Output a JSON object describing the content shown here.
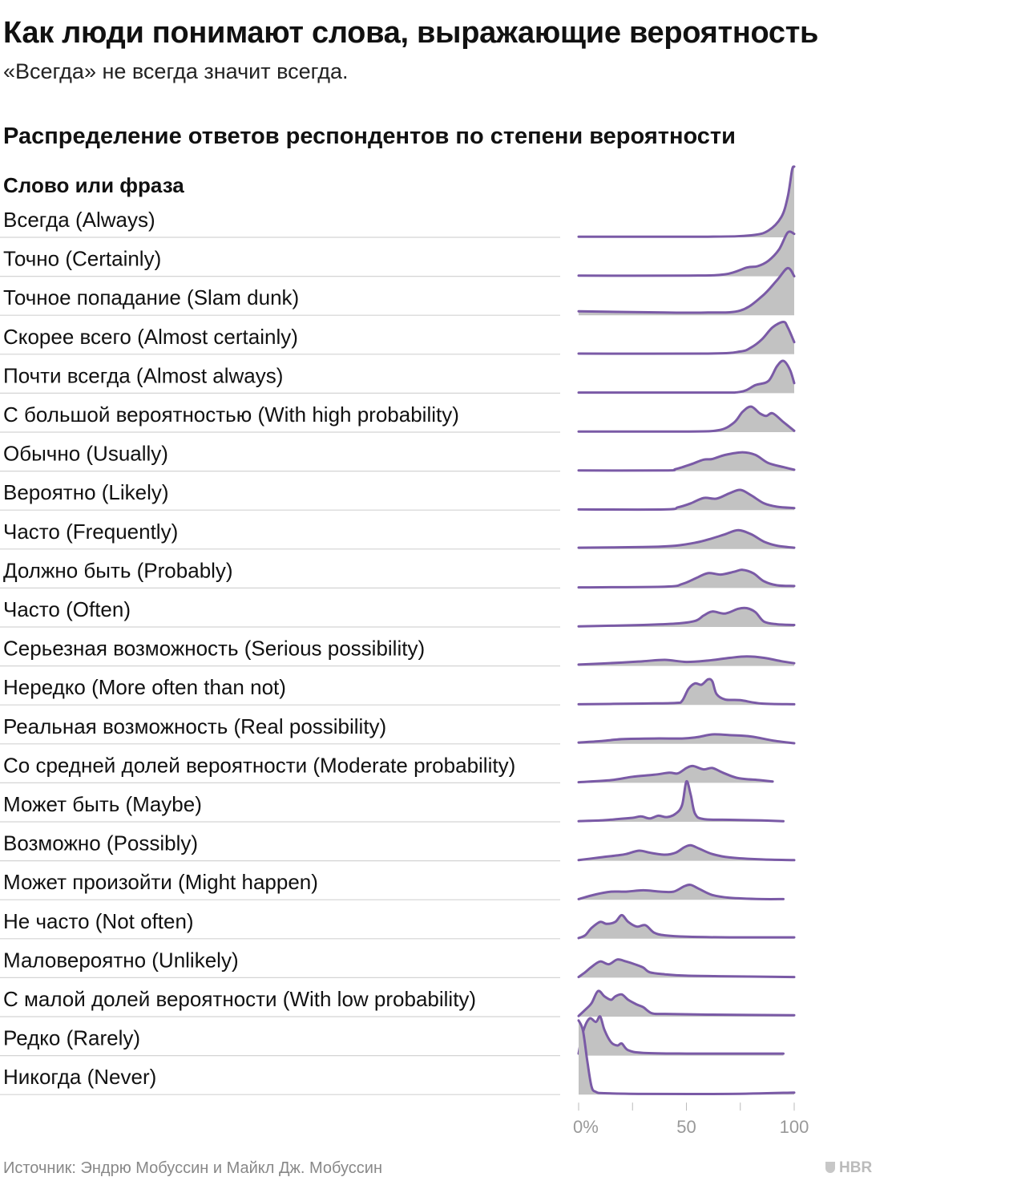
{
  "title": "Как люди понимают слова, выражающие вероятность",
  "subtitle": "«Всегда» не всегда значит всегда.",
  "section_title": "Распределение ответов респондентов по степени вероятности",
  "source": "Источник: Эндрю Мобуссин и Майкл Дж. Мобуссин",
  "brand": "HBR",
  "colors": {
    "line": "#7a5aa6",
    "fill": "#c2c2c2",
    "divider": "#d4d4d4",
    "tick": "#999999"
  },
  "chart_data": {
    "type": "area",
    "column_header": "Слово или фраза",
    "x_ticks": [
      "0%",
      "50",
      "100"
    ],
    "xlim": [
      0,
      100
    ],
    "rows": [
      {
        "label": "Всегда (Always)",
        "density": [
          [
            0,
            1
          ],
          [
            60,
            1
          ],
          [
            80,
            3
          ],
          [
            88,
            10
          ],
          [
            94,
            30
          ],
          [
            97,
            60
          ],
          [
            99,
            100
          ],
          [
            100,
            105
          ]
        ]
      },
      {
        "label": "Точно (Certainly)",
        "density": [
          [
            0,
            1
          ],
          [
            50,
            1
          ],
          [
            68,
            3
          ],
          [
            78,
            13
          ],
          [
            83,
            15
          ],
          [
            88,
            23
          ],
          [
            93,
            40
          ],
          [
            97,
            65
          ],
          [
            100,
            63
          ]
        ]
      },
      {
        "label": "Точное попадание (Slam dunk)",
        "density": [
          [
            0,
            6
          ],
          [
            40,
            4
          ],
          [
            60,
            4
          ],
          [
            75,
            7
          ],
          [
            85,
            28
          ],
          [
            92,
            52
          ],
          [
            97,
            70
          ],
          [
            100,
            58
          ]
        ]
      },
      {
        "label": "Скорее всего (Almost certainly)",
        "density": [
          [
            0,
            1
          ],
          [
            60,
            1
          ],
          [
            75,
            4
          ],
          [
            80,
            10
          ],
          [
            85,
            22
          ],
          [
            90,
            40
          ],
          [
            95,
            48
          ],
          [
            97,
            40
          ],
          [
            100,
            18
          ]
        ]
      },
      {
        "label": "Почти всегда (Almost always)",
        "density": [
          [
            0,
            1
          ],
          [
            60,
            1
          ],
          [
            75,
            2
          ],
          [
            82,
            12
          ],
          [
            88,
            18
          ],
          [
            92,
            40
          ],
          [
            95,
            48
          ],
          [
            98,
            35
          ],
          [
            100,
            15
          ]
        ]
      },
      {
        "label": "С большой вероятностью (With high probability)",
        "density": [
          [
            0,
            1
          ],
          [
            50,
            1
          ],
          [
            65,
            3
          ],
          [
            72,
            14
          ],
          [
            76,
            30
          ],
          [
            80,
            38
          ],
          [
            84,
            28
          ],
          [
            87,
            24
          ],
          [
            90,
            28
          ],
          [
            95,
            15
          ],
          [
            100,
            2
          ]
        ]
      },
      {
        "label": "Обычно (Usually)",
        "density": [
          [
            0,
            1
          ],
          [
            40,
            1
          ],
          [
            45,
            3
          ],
          [
            52,
            10
          ],
          [
            58,
            17
          ],
          [
            62,
            18
          ],
          [
            68,
            24
          ],
          [
            76,
            28
          ],
          [
            82,
            24
          ],
          [
            88,
            12
          ],
          [
            95,
            6
          ],
          [
            100,
            2
          ]
        ]
      },
      {
        "label": "Вероятно (Likely)",
        "density": [
          [
            0,
            1
          ],
          [
            40,
            1
          ],
          [
            46,
            4
          ],
          [
            52,
            10
          ],
          [
            58,
            18
          ],
          [
            64,
            17
          ],
          [
            70,
            25
          ],
          [
            75,
            30
          ],
          [
            80,
            22
          ],
          [
            86,
            10
          ],
          [
            92,
            5
          ],
          [
            100,
            3
          ]
        ]
      },
      {
        "label": "Часто (Frequently)",
        "density": [
          [
            0,
            2
          ],
          [
            30,
            3
          ],
          [
            45,
            5
          ],
          [
            55,
            10
          ],
          [
            62,
            16
          ],
          [
            68,
            22
          ],
          [
            74,
            28
          ],
          [
            80,
            22
          ],
          [
            86,
            11
          ],
          [
            92,
            5
          ],
          [
            100,
            2
          ]
        ]
      },
      {
        "label": "Должно быть (Probably)",
        "density": [
          [
            0,
            1
          ],
          [
            40,
            2
          ],
          [
            48,
            6
          ],
          [
            54,
            14
          ],
          [
            60,
            22
          ],
          [
            66,
            20
          ],
          [
            72,
            24
          ],
          [
            76,
            27
          ],
          [
            81,
            22
          ],
          [
            86,
            10
          ],
          [
            92,
            4
          ],
          [
            100,
            3
          ]
        ]
      },
      {
        "label": "Часто (Often)",
        "density": [
          [
            0,
            1
          ],
          [
            30,
            3
          ],
          [
            45,
            5
          ],
          [
            54,
            9
          ],
          [
            58,
            17
          ],
          [
            62,
            23
          ],
          [
            68,
            20
          ],
          [
            74,
            27
          ],
          [
            78,
            28
          ],
          [
            82,
            22
          ],
          [
            86,
            8
          ],
          [
            92,
            4
          ],
          [
            100,
            3
          ]
        ]
      },
      {
        "label": "Серьезная возможность (Serious possibility)",
        "density": [
          [
            0,
            2
          ],
          [
            20,
            5
          ],
          [
            30,
            7
          ],
          [
            40,
            9
          ],
          [
            50,
            6
          ],
          [
            60,
            8
          ],
          [
            70,
            12
          ],
          [
            78,
            14
          ],
          [
            86,
            12
          ],
          [
            94,
            7
          ],
          [
            100,
            4
          ]
        ]
      },
      {
        "label": "Нередко (More often than not)",
        "density": [
          [
            0,
            1
          ],
          [
            30,
            2
          ],
          [
            45,
            3
          ],
          [
            48,
            6
          ],
          [
            51,
            24
          ],
          [
            54,
            32
          ],
          [
            57,
            30
          ],
          [
            60,
            38
          ],
          [
            62,
            35
          ],
          [
            64,
            16
          ],
          [
            68,
            8
          ],
          [
            75,
            7
          ],
          [
            85,
            2
          ],
          [
            100,
            1
          ]
        ]
      },
      {
        "label": "Реальная возможность (Real possibility)",
        "density": [
          [
            0,
            2
          ],
          [
            10,
            4
          ],
          [
            20,
            7
          ],
          [
            35,
            8
          ],
          [
            48,
            8
          ],
          [
            55,
            10
          ],
          [
            62,
            14
          ],
          [
            70,
            13
          ],
          [
            80,
            11
          ],
          [
            90,
            5
          ],
          [
            100,
            1
          ]
        ]
      },
      {
        "label": "Со средней долей вероятности (Moderate probability)",
        "density": [
          [
            0,
            1
          ],
          [
            15,
            4
          ],
          [
            25,
            9
          ],
          [
            35,
            12
          ],
          [
            42,
            15
          ],
          [
            46,
            14
          ],
          [
            50,
            22
          ],
          [
            53,
            25
          ],
          [
            58,
            20
          ],
          [
            62,
            22
          ],
          [
            67,
            15
          ],
          [
            74,
            7
          ],
          [
            84,
            4
          ],
          [
            90,
            2
          ]
        ]
      },
      {
        "label": "Может быть (Maybe)",
        "density": [
          [
            0,
            1
          ],
          [
            10,
            2
          ],
          [
            18,
            4
          ],
          [
            25,
            6
          ],
          [
            29,
            8
          ],
          [
            33,
            5
          ],
          [
            37,
            9
          ],
          [
            41,
            7
          ],
          [
            45,
            12
          ],
          [
            48,
            25
          ],
          [
            50,
            60
          ],
          [
            52,
            40
          ],
          [
            54,
            12
          ],
          [
            58,
            4
          ],
          [
            70,
            3
          ],
          [
            85,
            2
          ],
          [
            95,
            1
          ]
        ]
      },
      {
        "label": "Возможно (Possibly)",
        "density": [
          [
            0,
            1
          ],
          [
            10,
            5
          ],
          [
            18,
            8
          ],
          [
            22,
            10
          ],
          [
            28,
            15
          ],
          [
            33,
            12
          ],
          [
            40,
            9
          ],
          [
            45,
            12
          ],
          [
            49,
            20
          ],
          [
            52,
            23
          ],
          [
            56,
            18
          ],
          [
            62,
            10
          ],
          [
            70,
            5
          ],
          [
            85,
            2
          ],
          [
            100,
            1
          ]
        ]
      },
      {
        "label": "Может произойти (Might happen)",
        "density": [
          [
            0,
            1
          ],
          [
            8,
            8
          ],
          [
            15,
            12
          ],
          [
            22,
            12
          ],
          [
            30,
            14
          ],
          [
            38,
            12
          ],
          [
            44,
            12
          ],
          [
            49,
            20
          ],
          [
            52,
            22
          ],
          [
            56,
            16
          ],
          [
            62,
            7
          ],
          [
            70,
            3
          ],
          [
            85,
            1
          ],
          [
            95,
            1
          ]
        ]
      },
      {
        "label": "Не часто (Not often)",
        "density": [
          [
            0,
            1
          ],
          [
            3,
            5
          ],
          [
            6,
            16
          ],
          [
            10,
            25
          ],
          [
            13,
            22
          ],
          [
            17,
            25
          ],
          [
            20,
            35
          ],
          [
            23,
            25
          ],
          [
            27,
            18
          ],
          [
            31,
            20
          ],
          [
            35,
            9
          ],
          [
            40,
            5
          ],
          [
            50,
            3
          ],
          [
            70,
            2
          ],
          [
            100,
            2
          ]
        ]
      },
      {
        "label": "Маловероятно (Unlikely)",
        "density": [
          [
            0,
            1
          ],
          [
            3,
            8
          ],
          [
            6,
            16
          ],
          [
            10,
            24
          ],
          [
            14,
            20
          ],
          [
            18,
            27
          ],
          [
            22,
            24
          ],
          [
            26,
            20
          ],
          [
            30,
            15
          ],
          [
            33,
            8
          ],
          [
            40,
            5
          ],
          [
            50,
            3
          ],
          [
            70,
            2
          ],
          [
            100,
            1
          ]
        ]
      },
      {
        "label": "С малой долей вероятности (With low probability)",
        "density": [
          [
            0,
            1
          ],
          [
            3,
            10
          ],
          [
            6,
            20
          ],
          [
            9,
            38
          ],
          [
            12,
            30
          ],
          [
            15,
            25
          ],
          [
            17,
            30
          ],
          [
            20,
            33
          ],
          [
            23,
            25
          ],
          [
            27,
            18
          ],
          [
            30,
            14
          ],
          [
            34,
            5
          ],
          [
            40,
            4
          ],
          [
            60,
            3
          ],
          [
            100,
            2
          ]
        ]
      },
      {
        "label": "Редко (Rarely)",
        "density": [
          [
            0,
            3
          ],
          [
            2,
            35
          ],
          [
            5,
            55
          ],
          [
            8,
            50
          ],
          [
            10,
            58
          ],
          [
            12,
            38
          ],
          [
            15,
            20
          ],
          [
            18,
            15
          ],
          [
            20,
            18
          ],
          [
            23,
            8
          ],
          [
            30,
            4
          ],
          [
            50,
            3
          ],
          [
            95,
            3
          ]
        ]
      },
      {
        "label": "Никогда (Never)",
        "density": [
          [
            0,
            110
          ],
          [
            2,
            95
          ],
          [
            4,
            50
          ],
          [
            6,
            12
          ],
          [
            8,
            4
          ],
          [
            12,
            2
          ],
          [
            30,
            1
          ],
          [
            70,
            1
          ],
          [
            100,
            3
          ]
        ]
      }
    ]
  }
}
